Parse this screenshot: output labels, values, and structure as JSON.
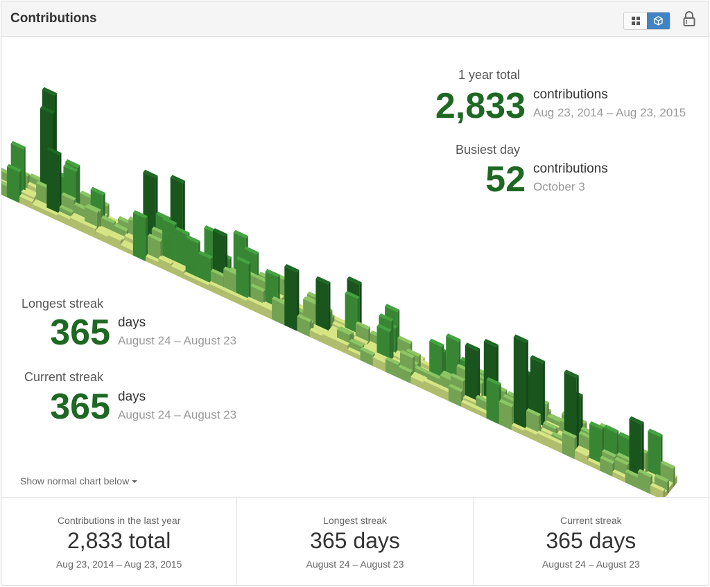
{
  "header": {
    "title": "Contributions",
    "toggle": {
      "grid_icon": "grid-icon",
      "cube_icon": "cube-icon",
      "active": "cube"
    },
    "lock_icon": "lock-icon"
  },
  "stats": {
    "year_total": {
      "caption": "1 year total",
      "value": "2,833",
      "unit": "contributions",
      "range": "Aug 23, 2014 – Aug 23, 2015"
    },
    "busiest_day": {
      "caption": "Busiest day",
      "value": "52",
      "unit": "contributions",
      "range": "October 3"
    },
    "longest_streak": {
      "caption": "Longest streak",
      "value": "365",
      "unit": "days",
      "range": "August 24 – August 23"
    },
    "current_streak": {
      "caption": "Current streak",
      "value": "365",
      "unit": "days",
      "range": "August 24 – August 23"
    }
  },
  "show_normal_link": "Show normal chart below",
  "footer": [
    {
      "caption": "Contributions in the last year",
      "value": "2,833 total",
      "range": "Aug 23, 2014 – Aug 23, 2015"
    },
    {
      "caption": "Longest streak",
      "value": "365 days",
      "range": "August 24 – August 23"
    },
    {
      "caption": "Current streak",
      "value": "365 days",
      "range": "August 24 – August 23"
    }
  ],
  "colors": {
    "level1": "#d6e685",
    "level2": "#8cc665",
    "level3": "#44a340",
    "level4": "#1e6823",
    "empty": "#eeeeee",
    "accent": "#1e6823",
    "toggle_active": "#4183c4"
  },
  "chart_data": {
    "type": "heatmap",
    "title": "",
    "x_range": [
      "Aug 23, 2014",
      "Aug 23, 2015"
    ],
    "weeks": 53,
    "days_per_week": 7,
    "max_value": 52,
    "busiest_day": "October 3"
  }
}
